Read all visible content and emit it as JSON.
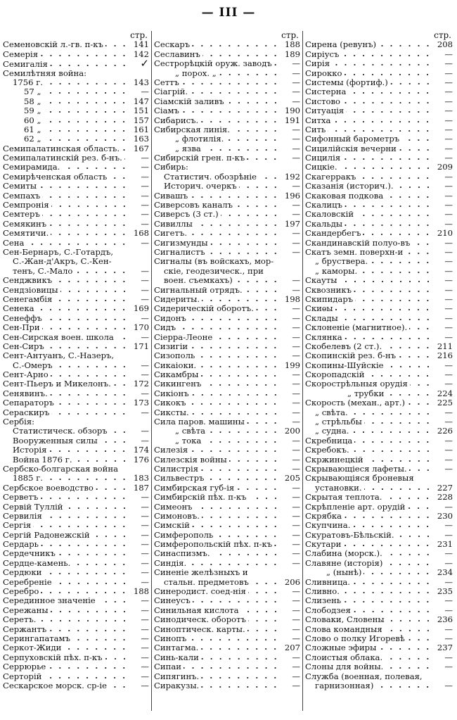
{
  "header": {
    "page_number": "— III —"
  },
  "columns": [
    {
      "page_label": "стр.",
      "rows": [
        [
          "Семеновскій л.-гв. п-къ",
          "141",
          0
        ],
        [
          "Семерія",
          "142",
          0
        ],
        [
          "Семигалія",
          "✓",
          0
        ],
        [
          "Семилѣтняя война:",
          "",
          0
        ],
        [
          "1756 г.",
          "143",
          1
        ],
        [
          "57 „",
          "—",
          2
        ],
        [
          "58 „",
          "147",
          2
        ],
        [
          "59 „",
          "151",
          2
        ],
        [
          "60 „",
          "157",
          2
        ],
        [
          "61 „",
          "161",
          2
        ],
        [
          "62 „",
          "163",
          2
        ],
        [
          "Семипалатинская область.",
          "167",
          0
        ],
        [
          "Семипалатинскій рез. б-нъ.",
          "—",
          0
        ],
        [
          "Семирамида.",
          "—",
          0
        ],
        [
          "Семирѣченская область",
          "—",
          0
        ],
        [
          "Семиты",
          "—",
          0
        ],
        [
          "Семпахъ",
          "—",
          0
        ],
        [
          "Семпронія",
          "—",
          0
        ],
        [
          "Семтеръ",
          "—",
          0
        ],
        [
          "Семякинъ",
          "—",
          0
        ],
        [
          "Семятичи.",
          "168",
          0
        ],
        [
          "Сена",
          "—",
          0
        ],
        [
          "Сен-Бернаръ, С.-Готардъ,",
          "",
          0
        ],
        [
          "С.-Жан-д'Акръ, С.-Кен-",
          "",
          1
        ],
        [
          "тенъ, С.-Мало",
          "—",
          1
        ],
        [
          "Сенджвикъ",
          "—",
          0
        ],
        [
          "Сендзіовицы",
          "—",
          0
        ],
        [
          "Сенегамбія",
          "—",
          0
        ],
        [
          "Сенека",
          "169",
          0
        ],
        [
          "Сенеффъ",
          "—",
          0
        ],
        [
          "Сен-При",
          "170",
          0
        ],
        [
          "Сен-Сирская воен. школа",
          "—",
          0
        ],
        [
          "Сен-Сиръ",
          "171",
          0
        ],
        [
          "Сент-Антуанъ, С.-Назеръ,",
          "",
          0
        ],
        [
          "С.-Омеръ",
          "—",
          1
        ],
        [
          "Сент-Арно",
          "—",
          0
        ],
        [
          "Сент-Пьеръ и Микелонъ.",
          "172",
          0
        ],
        [
          "Сенявинъ.",
          "—",
          0
        ],
        [
          "Сепараторъ",
          "173",
          0
        ],
        [
          "Сераскиръ",
          "—",
          0
        ],
        [
          "Сербія:",
          "",
          0
        ],
        [
          "Статистическ. обзоръ",
          "—",
          1
        ],
        [
          "Вооруженныя силы",
          "—",
          1
        ],
        [
          "Исторія",
          "174",
          1
        ],
        [
          "Война 1876 г.",
          "176",
          1
        ],
        [
          "Сербско-болгарская война",
          "",
          0
        ],
        [
          "1885 г.",
          "183",
          1
        ],
        [
          "Сербское воеводство",
          "187",
          0
        ],
        [
          "Серветъ",
          "—",
          0
        ],
        [
          "Сервій Туллій",
          "—",
          0
        ],
        [
          "Сервилія",
          "—",
          0
        ],
        [
          "Сергія",
          "—",
          0
        ],
        [
          "Сергій Радонежскій",
          "—",
          0
        ],
        [
          "Сердарь",
          "—",
          0
        ],
        [
          "Сердечникъ",
          "—",
          0
        ],
        [
          "Сердце-камень.",
          "—",
          0
        ],
        [
          "Сердюки",
          "—",
          0
        ],
        [
          "Серебреніе",
          "—",
          0
        ],
        [
          "Серебро",
          "188",
          0
        ],
        [
          "Серединное значеніе",
          "—",
          0
        ],
        [
          "Сережаны",
          "—",
          0
        ],
        [
          "Серетъ.",
          "—",
          0
        ],
        [
          "Сержантъ",
          "—",
          0
        ],
        [
          "Серингапатамъ",
          "—",
          0
        ],
        [
          "Серкот-Жиди",
          "—",
          0
        ],
        [
          "Серпуховскій пѣх. п-къ",
          "—",
          0
        ],
        [
          "Серрюрье",
          "—",
          0
        ],
        [
          "Серторій",
          "—",
          0
        ],
        [
          "Сескарское морск. ср-іе",
          "—",
          0
        ]
      ]
    },
    {
      "page_label": "стр.",
      "rows": [
        [
          "Сескаръ",
          "188",
          0
        ],
        [
          "Сеславинъ",
          "189",
          0
        ],
        [
          "Сестрорѣцкій оруж. заводъ",
          "—",
          0
        ],
        [
          "„ порох. „",
          "—",
          2
        ],
        [
          "Сеттъ",
          "—",
          0
        ],
        [
          "Сіагрій.",
          "—",
          0
        ],
        [
          "Сіамскій заливъ",
          "—",
          0
        ],
        [
          "Сіамъ",
          "190",
          0
        ],
        [
          "Сибарисъ.",
          "191",
          0
        ],
        [
          "Сибирская линія.",
          "—",
          0
        ],
        [
          "„ флотилія.",
          "—",
          2
        ],
        [
          "„ язва",
          "—",
          2
        ],
        [
          "Сибирскій грен. п-къ",
          "—",
          0
        ],
        [
          "Сибирь:",
          "",
          0
        ],
        [
          "Статистич. обозрѣніе",
          "192",
          1
        ],
        [
          "Историч. очеркъ",
          "—",
          1
        ],
        [
          "Сивашъ",
          "196",
          0
        ],
        [
          "Сиверсовъ каналъ",
          "—",
          0
        ],
        [
          "Сиверсъ (3 ст.)",
          "—",
          0
        ],
        [
          "Сивиллы",
          "197",
          0
        ],
        [
          "Сигетъ.",
          "—",
          0
        ],
        [
          "Сигизмунды",
          "—",
          0
        ],
        [
          "Сигналистъ",
          "—",
          0
        ],
        [
          "Сигналы (въ войскахъ, мор-",
          "",
          0
        ],
        [
          "скіе, геодезическ., при",
          "",
          1
        ],
        [
          "воен. съемкахъ)",
          "—",
          1
        ],
        [
          "Сигнальный отрядъ.",
          "—",
          0
        ],
        [
          "Сидериты.",
          "198",
          0
        ],
        [
          "Сидерическій оборотъ.",
          "—",
          0
        ],
        [
          "Сидонъ",
          "—",
          0
        ],
        [
          "Сидъ",
          "—",
          0
        ],
        [
          "Сіерра-Леоне",
          "—",
          0
        ],
        [
          "Сизигіи",
          "—",
          0
        ],
        [
          "Сизополь",
          "—",
          0
        ],
        [
          "Сикаіоки.",
          "199",
          0
        ],
        [
          "Сикамбры",
          "—",
          0
        ],
        [
          "Сикингенъ",
          "—",
          0
        ],
        [
          "Сикіонъ",
          "—",
          0
        ],
        [
          "Сикокъ",
          "—",
          0
        ],
        [
          "Сиксты.",
          "—",
          0
        ],
        [
          "Сила паров. машины",
          "—",
          0
        ],
        [
          "„ свѣта",
          "200",
          2
        ],
        [
          "„ тока",
          "—",
          2
        ],
        [
          "Силезія",
          "—",
          0
        ],
        [
          "Силезскія войны",
          "—",
          0
        ],
        [
          "Силистрія",
          "—",
          0
        ],
        [
          "Сильвестръ",
          "205",
          0
        ],
        [
          "Симбирская губ-ія",
          "—",
          0
        ],
        [
          "Симбирскій пѣх. п-къ",
          "—",
          0
        ],
        [
          "Симеонъ",
          "—",
          0
        ],
        [
          "Симоновъ.",
          "—",
          0
        ],
        [
          "Симскій",
          "—",
          0
        ],
        [
          "Симферополь",
          "—",
          0
        ],
        [
          "Симферопольскій пѣх. п-къ",
          "—",
          0
        ],
        [
          "Синаспизмъ.",
          "—",
          0
        ],
        [
          "Синдія.",
          "—",
          0
        ],
        [
          "Синеніе желѣзныхъ и",
          "",
          0
        ],
        [
          "стальн. предметовъ",
          "206",
          1
        ],
        [
          "Синеродист. соед-нія",
          "—",
          0
        ],
        [
          "Синеусъ",
          "—",
          0
        ],
        [
          "Синильная кислота",
          "—",
          0
        ],
        [
          "Синодическ. оборотъ",
          "—",
          0
        ],
        [
          "Синоптическ. карты.",
          "—",
          0
        ],
        [
          "Синопъ",
          "—",
          0
        ],
        [
          "Синтагма.",
          "207",
          0
        ],
        [
          "Синь-кали",
          "—",
          0
        ],
        [
          "Сипаи",
          "—",
          0
        ],
        [
          "Сипягинъ.",
          "—",
          0
        ],
        [
          "Сиракузы.",
          "—",
          0
        ]
      ]
    },
    {
      "page_label": "стр.",
      "rows": [
        [
          "Сирена (ревунъ)",
          "208",
          0
        ],
        [
          "Сиріусъ",
          "—",
          0
        ],
        [
          "Сирія",
          "—",
          0
        ],
        [
          "Сирокко",
          "—",
          0
        ],
        [
          "Системы (фортиф.)",
          "—",
          0
        ],
        [
          "Систерна",
          "—",
          0
        ],
        [
          "Систово",
          "—",
          0
        ],
        [
          "Ситуація",
          "—",
          0
        ],
        [
          "Ситха",
          "—",
          0
        ],
        [
          "Сить",
          "—",
          0
        ],
        [
          "Сифонный барометръ",
          "—",
          0
        ],
        [
          "Сицилійскія вечерни",
          "—",
          0
        ],
        [
          "Сицилія",
          "—",
          0
        ],
        [
          "Сицкіе.",
          "209",
          0
        ],
        [
          "Скагерракъ",
          "—",
          0
        ],
        [
          "Сказанія (историч.).",
          "—",
          0
        ],
        [
          "Скаковая подкова",
          "—",
          0
        ],
        [
          "Скалицъ",
          "—",
          0
        ],
        [
          "Скаловскій",
          "—",
          0
        ],
        [
          "Скальды",
          "—",
          0
        ],
        [
          "Скандербегъ",
          "210",
          0
        ],
        [
          "Скандинавскій полуо-въ",
          "—",
          0
        ],
        [
          "Скатъ земн. поверхн-и",
          "—",
          0
        ],
        [
          "„ бруствера.",
          "—",
          1
        ],
        [
          "„ каморы.",
          "—",
          1
        ],
        [
          "Скауты",
          "—",
          0
        ],
        [
          "Сквозникъ",
          "—",
          0
        ],
        [
          "Скипидаръ",
          "—",
          0
        ],
        [
          "Скиѳы",
          "—",
          0
        ],
        [
          "Склады",
          "—",
          0
        ],
        [
          "Склоненіе (магнитное).",
          "—",
          0
        ],
        [
          "Склянка",
          "—",
          0
        ],
        [
          "Скобелевъ (2 ст.).",
          "211",
          0
        ],
        [
          "Скопинскій рез. б-нъ",
          "216",
          0
        ],
        [
          "Скопины-Шуйскіе",
          "—",
          0
        ],
        [
          "Скоропадскій",
          "—",
          0
        ],
        [
          "Скорострѣльныя орудія",
          "—",
          0
        ],
        [
          "„ трубки",
          "224",
          3
        ],
        [
          "Скорость (механ., арт.)",
          "225",
          0
        ],
        [
          "„ свѣта.",
          "—",
          1
        ],
        [
          "„ стрѣльбы",
          "—",
          1
        ],
        [
          "„ судна.",
          "226",
          1
        ],
        [
          "Скребница",
          "—",
          0
        ],
        [
          "Скребокъ.",
          "—",
          0
        ],
        [
          "Скржинецкій",
          "—",
          0
        ],
        [
          "Скрывающіеся лафеты.",
          "—",
          0
        ],
        [
          "Скрывающіяся броневыя",
          "",
          0
        ],
        [
          "установки.",
          "227",
          1
        ],
        [
          "Скрытая теплота.",
          "228",
          0
        ],
        [
          "Скрѣпленіе арт. орудій",
          "—",
          0
        ],
        [
          "Скрябка",
          "230",
          0
        ],
        [
          "Скупчина.",
          "—",
          0
        ],
        [
          "Скуратовъ-Бѣльскій.",
          "—",
          0
        ],
        [
          "Скутари",
          "231",
          0
        ],
        [
          "Слабина (морск.).",
          "—",
          0
        ],
        [
          "Славяне (исторія)",
          "—",
          0
        ],
        [
          "„ (нынѣ)",
          "234",
          2
        ],
        [
          "Сливница.",
          "—",
          0
        ],
        [
          "Сливно.",
          "235",
          0
        ],
        [
          "Слизень",
          "—",
          0
        ],
        [
          "Слободзея",
          "—",
          0
        ],
        [
          "Словаки, Словены",
          "236",
          0
        ],
        [
          "Слова командныя",
          "—",
          0
        ],
        [
          "Слово о полку Игоревѣ",
          "—",
          0
        ],
        [
          "Сложные эфиры",
          "237",
          0
        ],
        [
          "Слоистыя облака.",
          "—",
          0
        ],
        [
          "Слоны для войны.",
          "—",
          0
        ],
        [
          "Служба (военная, полевая,",
          "",
          0
        ],
        [
          "гарнизонная)",
          "—",
          1
        ]
      ]
    }
  ]
}
